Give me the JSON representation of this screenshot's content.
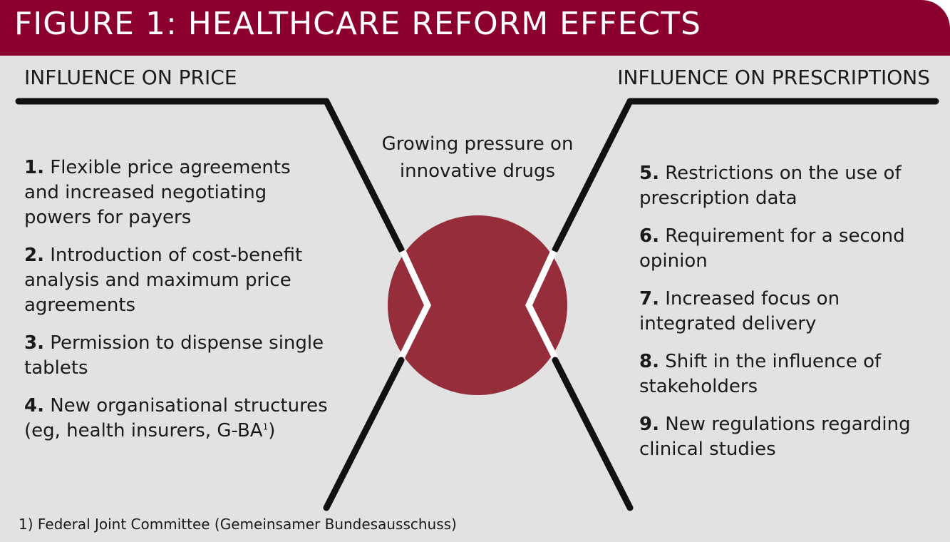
{
  "header": {
    "title": "FIGURE 1: HEALTHCARE REFORM EFFECTS"
  },
  "left": {
    "heading": "INFLUENCE ON PRICE",
    "items": [
      {
        "number": "1.",
        "text": "Flexible price agreements and increased negotiating powers for payers"
      },
      {
        "number": "2.",
        "text": "Introduction of cost-benefit analysis and maximum price agreements"
      },
      {
        "number": "3.",
        "text": "Permission to dispense single tablets"
      },
      {
        "number": "4.",
        "text": "New organisational structures (eg, health insurers, G-BA",
        "sup": "1",
        "after": ")"
      }
    ]
  },
  "right": {
    "heading": "INFLUENCE ON PRESCRIPTIONS",
    "items": [
      {
        "number": "5.",
        "text": "Restrictions on the use of prescription data"
      },
      {
        "number": "6.",
        "text": "Requirement for a second opinion"
      },
      {
        "number": "7.",
        "text": "Increased focus on integrated delivery"
      },
      {
        "number": "8.",
        "text": "Shift in the influence of stakeholders"
      },
      {
        "number": "9.",
        "text": "New regulations regarding clinical studies"
      }
    ]
  },
  "center": {
    "text": "Growing pressure on innovative drugs"
  },
  "footnote": "1) Federal Joint Committee (Gemeinsamer Bundesausschuss)",
  "colors": {
    "header": "#8b0030",
    "circle": "#952d3a",
    "background": "#e1e2e1",
    "line": "#111111"
  }
}
